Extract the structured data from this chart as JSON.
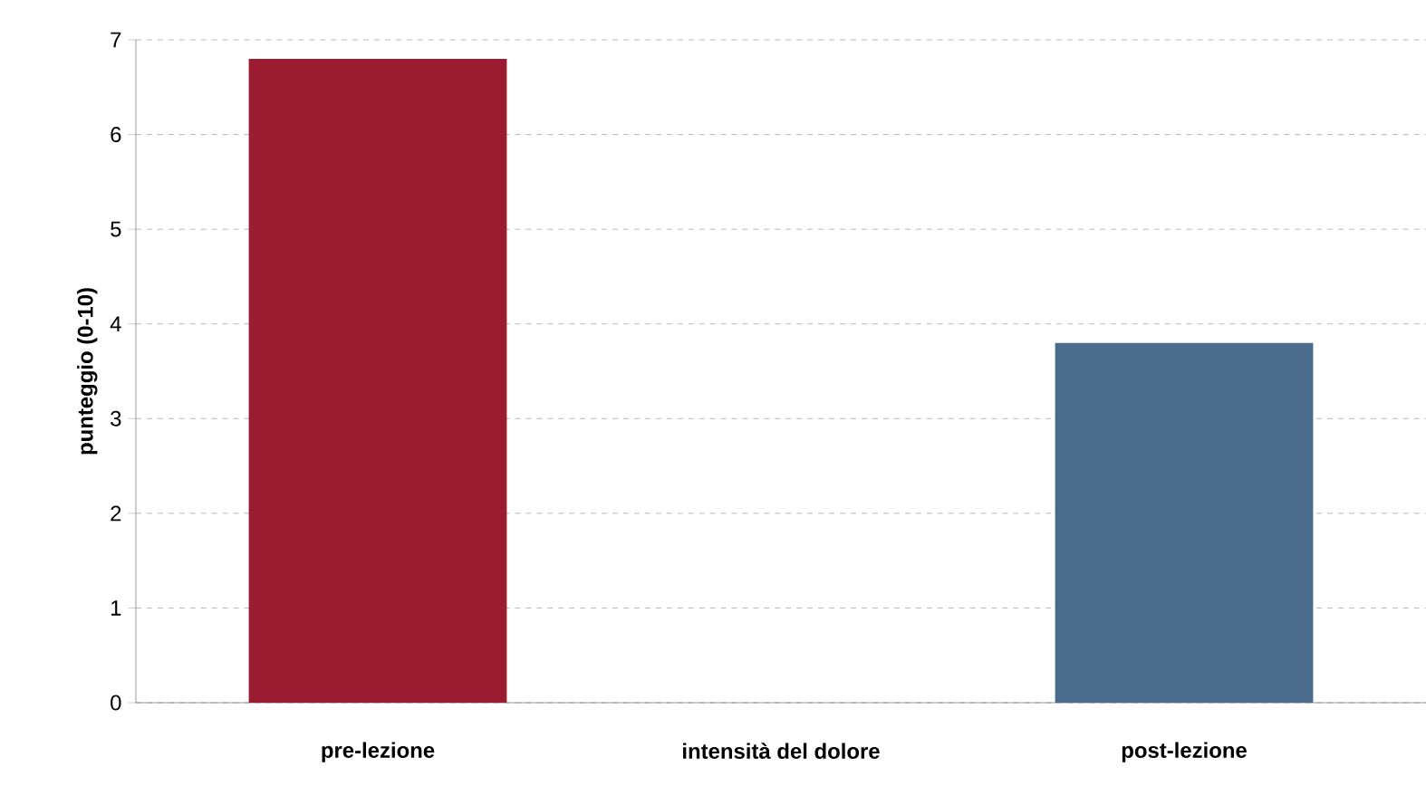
{
  "chart_data": {
    "type": "bar",
    "xlabel": "intensità del dolore",
    "ylabel": "punteggio (0-10)",
    "categories": [
      "pre-lezione",
      "post-lezione"
    ],
    "values": [
      6.8,
      3.8
    ],
    "colors": [
      "#9b1b30",
      "#4a6b8c"
    ],
    "ylim": [
      0,
      7
    ],
    "yticks": [
      0,
      1,
      2,
      3,
      4,
      5,
      6,
      7
    ],
    "grid": "y"
  }
}
